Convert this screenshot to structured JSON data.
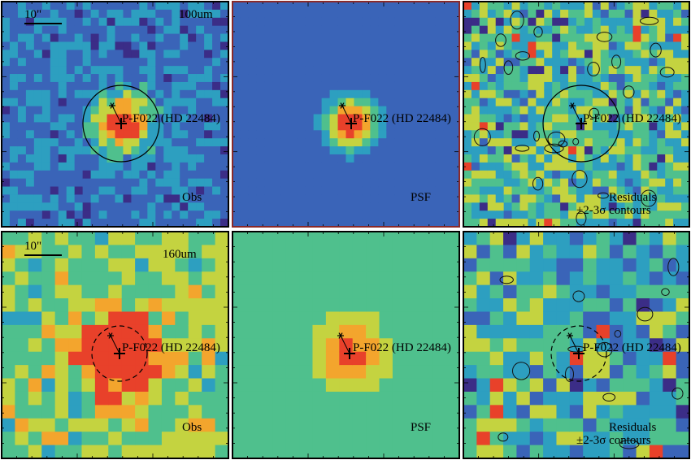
{
  "figure": {
    "source_name": "P-F022 (HD 22484)",
    "scale_bar_label": "10\"",
    "contour_note": "±2-3σ contours",
    "panel_labels": {
      "obs": "Obs",
      "psf": "PSF",
      "residuals": "Residuals"
    },
    "rows": [
      {
        "band": "100um",
        "band_label": "100um",
        "aperture": "solid",
        "grid": 28,
        "seed": 11
      },
      {
        "band": "160um",
        "band_label": "160um",
        "aperture": "dashed",
        "grid": 17,
        "seed": 29
      }
    ],
    "colors": {
      "colormap": [
        "#3b2d87",
        "#3a64b8",
        "#2d9fc0",
        "#4fc08d",
        "#c4d340",
        "#f3a52d",
        "#e8412a"
      ],
      "frame": "#000000",
      "frame_psf_top": "#8a2a2a",
      "marker": "#000000"
    }
  }
}
